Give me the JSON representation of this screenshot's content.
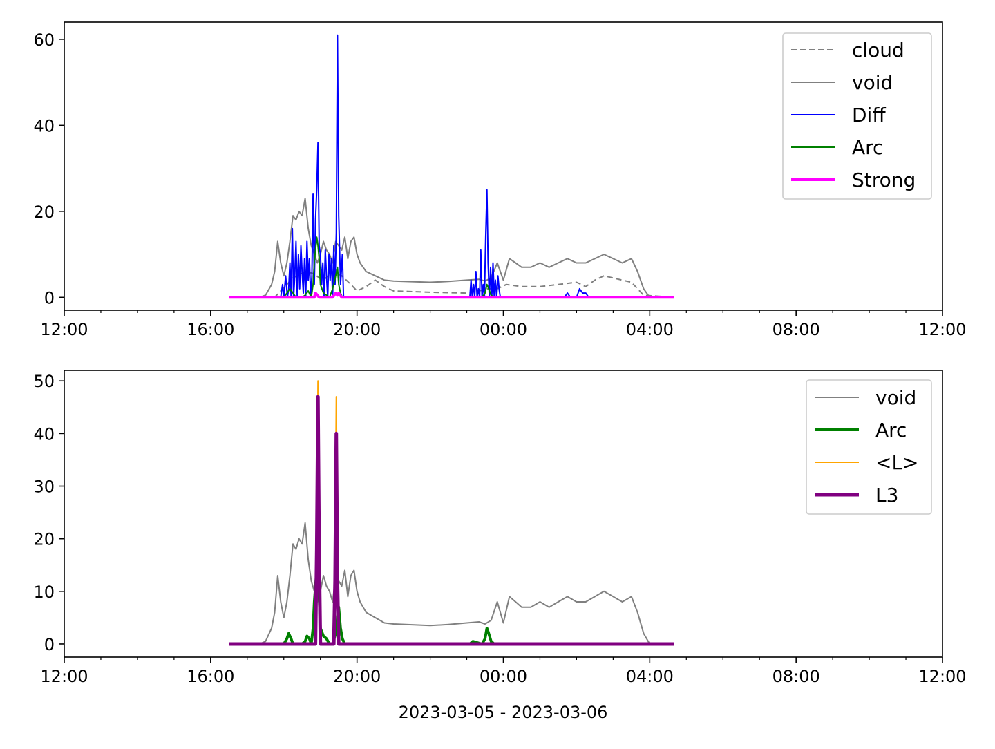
{
  "figure": {
    "xlabel": "2023-03-05 - 2023-03-06"
  },
  "chart_data": [
    {
      "type": "line",
      "x_axis": {
        "range": [
          "2023-03-05 12:00",
          "2023-03-06 12:00"
        ],
        "major_ticks": [
          "12:00",
          "16:00",
          "20:00",
          "00:00",
          "04:00",
          "08:00",
          "12:00"
        ],
        "minor_tick_interval_hours": 1
      },
      "y_axis": {
        "range": [
          -3,
          64
        ],
        "ticks": [
          "0",
          "20",
          "40",
          "60"
        ]
      },
      "grid": false,
      "legend_position": "top-right",
      "series": [
        {
          "name": "cloud",
          "color": "#808080",
          "style": "dashed",
          "x": [
            "16:30",
            "17:45",
            "17:55",
            "18:05",
            "18:15",
            "18:35",
            "18:50",
            "18:58",
            "19:05",
            "19:20",
            "19:35",
            "19:50",
            "20:00",
            "20:15",
            "20:30",
            "20:45",
            "21:00",
            "22:00",
            "23:00",
            "23:20",
            "23:35",
            "23:50",
            "00:05",
            "00:30",
            "01:00",
            "01:30",
            "02:00",
            "02:15",
            "02:30",
            "02:45",
            "03:00",
            "03:15",
            "03:30",
            "03:50",
            "04:40"
          ],
          "y": [
            0,
            0,
            1.5,
            3,
            4.5,
            6,
            5.5,
            4.5,
            4,
            6,
            5,
            3,
            1.5,
            2.5,
            4,
            2.5,
            1.5,
            1.2,
            1,
            1.5,
            2,
            2,
            3,
            2.5,
            2.5,
            3,
            3.5,
            2.5,
            4,
            5,
            4.5,
            4,
            3.5,
            0.5,
            0
          ]
        },
        {
          "name": "void",
          "color": "#808080",
          "style": "solid",
          "x": [
            "16:30",
            "17:20",
            "17:30",
            "17:40",
            "17:45",
            "17:50",
            "17:55",
            "18:00",
            "18:05",
            "18:10",
            "18:15",
            "18:20",
            "18:25",
            "18:30",
            "18:35",
            "18:40",
            "18:45",
            "18:50",
            "18:55",
            "19:00",
            "19:05",
            "19:10",
            "19:15",
            "19:20",
            "19:25",
            "19:30",
            "19:35",
            "19:40",
            "19:45",
            "19:50",
            "19:55",
            "20:00",
            "20:05",
            "20:15",
            "20:30",
            "20:45",
            "21:00",
            "22:00",
            "22:30",
            "23:00",
            "23:20",
            "23:30",
            "23:40",
            "23:50",
            "23:55",
            "00:00",
            "00:10",
            "00:20",
            "00:30",
            "00:45",
            "01:00",
            "01:15",
            "01:30",
            "01:45",
            "02:00",
            "02:15",
            "02:30",
            "02:45",
            "03:00",
            "03:15",
            "03:30",
            "03:40",
            "03:50",
            "04:00",
            "04:40"
          ],
          "y": [
            0,
            0,
            0.5,
            3,
            6,
            13,
            8,
            5,
            8,
            13,
            19,
            18,
            20,
            19,
            23,
            16,
            12,
            10,
            8,
            10,
            13,
            11,
            10,
            8,
            13,
            12,
            11,
            14,
            9,
            13,
            14,
            10,
            8,
            6,
            5,
            4,
            3.8,
            3.5,
            3.7,
            4,
            4.2,
            3.8,
            4.5,
            8,
            6,
            4,
            9,
            8,
            7,
            7,
            8,
            7,
            8,
            9,
            8,
            8,
            9,
            10,
            9,
            8,
            9,
            6,
            2,
            0,
            0
          ]
        },
        {
          "name": "Diff",
          "color": "#0000ff",
          "style": "solid",
          "x": [
            "17:55",
            "17:58",
            "18:00",
            "18:03",
            "18:06",
            "18:08",
            "18:10",
            "18:12",
            "18:14",
            "18:16",
            "18:18",
            "18:20",
            "18:22",
            "18:24",
            "18:26",
            "18:28",
            "18:30",
            "18:32",
            "18:34",
            "18:36",
            "18:38",
            "18:40",
            "18:42",
            "18:44",
            "18:46",
            "18:48",
            "18:50",
            "18:52",
            "18:54",
            "18:56",
            "18:58",
            "19:00",
            "19:02",
            "19:04",
            "19:06",
            "19:08",
            "19:10",
            "19:12",
            "19:14",
            "19:16",
            "19:18",
            "19:20",
            "19:22",
            "19:24",
            "19:26",
            "19:28",
            "19:30",
            "19:33",
            "19:36",
            "19:38",
            "19:40",
            "23:05",
            "23:07",
            "23:09",
            "23:11",
            "23:13",
            "23:15",
            "23:17",
            "23:19",
            "23:21",
            "23:23",
            "23:25",
            "23:27",
            "23:29",
            "23:31",
            "23:33",
            "23:35",
            "23:37",
            "23:39",
            "23:41",
            "23:43",
            "23:45",
            "23:47",
            "23:49",
            "23:51",
            "23:53",
            "23:55",
            "01:40",
            "01:45",
            "01:50",
            "02:00",
            "02:05",
            "02:10",
            "02:15",
            "02:20"
          ],
          "y": [
            0,
            3,
            0,
            5,
            0,
            2,
            8,
            0,
            16,
            0,
            5,
            13,
            0,
            10,
            2,
            12,
            6,
            1,
            9,
            0,
            13,
            4,
            9,
            0,
            5,
            24,
            3,
            18,
            25,
            36,
            12,
            10,
            3,
            8,
            0,
            11,
            5,
            0,
            10,
            4,
            9,
            0,
            12,
            3,
            15,
            61,
            19,
            3,
            10,
            0,
            0,
            0,
            4,
            0,
            3,
            0,
            6,
            0,
            2,
            0,
            11,
            0,
            3,
            0,
            14,
            25,
            8,
            0,
            7,
            0,
            8,
            0,
            4,
            0,
            5,
            2,
            0,
            0,
            1,
            0,
            0,
            2,
            1,
            1,
            0
          ]
        },
        {
          "name": "Arc",
          "color": "#008000",
          "style": "solid",
          "x": [
            "18:00",
            "18:05",
            "18:10",
            "18:15",
            "18:20",
            "18:30",
            "18:35",
            "18:40",
            "18:45",
            "18:48",
            "18:50",
            "18:52",
            "18:54",
            "18:56",
            "18:58",
            "19:00",
            "19:05",
            "19:15",
            "19:20",
            "19:25",
            "19:28",
            "19:30",
            "19:33",
            "19:36",
            "19:40",
            "23:25",
            "23:30",
            "23:33",
            "23:36",
            "23:40",
            "23:45"
          ],
          "y": [
            0,
            1,
            2,
            1,
            0,
            0,
            0.5,
            1.5,
            0,
            3,
            8,
            11,
            14,
            12,
            9,
            3,
            1,
            0,
            2,
            5,
            7,
            3,
            1,
            0,
            0,
            0,
            1,
            3,
            2,
            0.5,
            0
          ]
        },
        {
          "name": "Strong",
          "color": "#ff00ff",
          "style": "solid",
          "x": [
            "16:30",
            "18:50",
            "18:52",
            "18:55",
            "18:58",
            "19:20",
            "19:25",
            "19:28",
            "19:30",
            "19:35",
            "04:40"
          ],
          "y": [
            0,
            0,
            1,
            0.5,
            0,
            0,
            1,
            0.5,
            1,
            0,
            0
          ]
        }
      ]
    },
    {
      "type": "line",
      "x_axis": {
        "range": [
          "2023-03-05 12:00",
          "2023-03-06 12:00"
        ],
        "major_ticks": [
          "12:00",
          "16:00",
          "20:00",
          "00:00",
          "04:00",
          "08:00",
          "12:00"
        ],
        "minor_tick_interval_hours": 1
      },
      "y_axis": {
        "range": [
          -2.5,
          52
        ],
        "ticks": [
          "0",
          "10",
          "20",
          "30",
          "40",
          "50"
        ]
      },
      "grid": false,
      "legend_position": "top-right",
      "series": [
        {
          "name": "void",
          "color": "#808080",
          "style": "solid",
          "x": [
            "16:30",
            "17:20",
            "17:30",
            "17:40",
            "17:45",
            "17:50",
            "17:55",
            "18:00",
            "18:05",
            "18:10",
            "18:15",
            "18:20",
            "18:25",
            "18:30",
            "18:35",
            "18:40",
            "18:45",
            "18:50",
            "18:55",
            "19:00",
            "19:05",
            "19:10",
            "19:15",
            "19:20",
            "19:25",
            "19:30",
            "19:35",
            "19:40",
            "19:45",
            "19:50",
            "19:55",
            "20:00",
            "20:05",
            "20:15",
            "20:30",
            "20:45",
            "21:00",
            "22:00",
            "22:30",
            "23:00",
            "23:20",
            "23:30",
            "23:40",
            "23:50",
            "23:55",
            "00:00",
            "00:10",
            "00:20",
            "00:30",
            "00:45",
            "01:00",
            "01:15",
            "01:30",
            "01:45",
            "02:00",
            "02:15",
            "02:30",
            "02:45",
            "03:00",
            "03:15",
            "03:30",
            "03:40",
            "03:50",
            "04:00",
            "04:40"
          ],
          "y": [
            0,
            0,
            0.5,
            3,
            6,
            13,
            8,
            5,
            8,
            13,
            19,
            18,
            20,
            19,
            23,
            16,
            12,
            10,
            8,
            10,
            13,
            11,
            10,
            8,
            13,
            12,
            11,
            14,
            9,
            13,
            14,
            10,
            8,
            6,
            5,
            4,
            3.8,
            3.5,
            3.7,
            4,
            4.2,
            3.8,
            4.5,
            8,
            6,
            4,
            9,
            8,
            7,
            7,
            8,
            7,
            8,
            9,
            8,
            8,
            9,
            10,
            9,
            8,
            9,
            6,
            2,
            0,
            0
          ]
        },
        {
          "name": "Arc",
          "color": "#008000",
          "style": "solid",
          "x": [
            "16:30",
            "18:00",
            "18:05",
            "18:08",
            "18:12",
            "18:15",
            "18:30",
            "18:35",
            "18:38",
            "18:42",
            "18:45",
            "18:48",
            "18:50",
            "18:52",
            "18:54",
            "18:56",
            "18:58",
            "19:00",
            "19:05",
            "19:10",
            "19:15",
            "19:20",
            "19:25",
            "19:28",
            "19:30",
            "19:33",
            "19:36",
            "19:40",
            "23:05",
            "23:10",
            "23:25",
            "23:30",
            "23:33",
            "23:36",
            "23:40",
            "23:45",
            "04:40"
          ],
          "y": [
            0,
            0,
            1,
            2,
            1,
            0,
            0,
            0.5,
            1.5,
            1,
            0,
            3,
            8,
            11,
            14,
            12,
            9,
            3,
            1.5,
            1,
            0,
            0,
            2,
            5,
            7,
            3,
            1,
            0,
            0,
            0.5,
            0,
            1,
            3,
            2,
            0.5,
            0,
            0
          ]
        },
        {
          "name": "<L>",
          "color": "#ffa500",
          "style": "solid",
          "x": [
            "16:30",
            "18:52",
            "18:54",
            "18:56",
            "18:58",
            "19:00",
            "19:20",
            "19:22",
            "19:24",
            "19:26",
            "19:28",
            "19:30",
            "04:40"
          ],
          "y": [
            0,
            0,
            20,
            50,
            20,
            0,
            0,
            0,
            15,
            47,
            15,
            0,
            0
          ]
        },
        {
          "name": "L3",
          "color": "#800080",
          "style": "solid",
          "x": [
            "16:30",
            "18:52",
            "18:54",
            "18:56",
            "18:58",
            "19:00",
            "19:20",
            "19:22",
            "19:24",
            "19:26",
            "19:28",
            "19:30",
            "04:40"
          ],
          "y": [
            0,
            0,
            18,
            47,
            18,
            0,
            0,
            0,
            12,
            40,
            12,
            0,
            0
          ]
        }
      ]
    }
  ]
}
